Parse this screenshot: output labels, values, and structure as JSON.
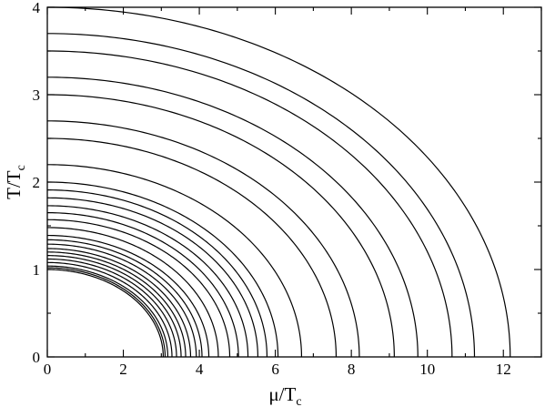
{
  "chart_data": {
    "type": "line",
    "title": "",
    "xlabel": {
      "main": "μ/T",
      "sub": "c"
    },
    "ylabel": {
      "main": "T/T",
      "sub": "c"
    },
    "xlim": [
      0,
      13
    ],
    "ylim": [
      0,
      4
    ],
    "x_ticks": [
      0,
      2,
      4,
      6,
      8,
      10,
      12
    ],
    "y_ticks": [
      0,
      1,
      2,
      3,
      4
    ],
    "grid": false,
    "legend": "none",
    "line_color": "#000000",
    "series": [
      {
        "T0": 1.0,
        "mu_max": 3.05
      },
      {
        "T0": 1.02,
        "mu_max": 3.1
      },
      {
        "T0": 1.04,
        "mu_max": 3.17
      },
      {
        "T0": 1.08,
        "mu_max": 3.28
      },
      {
        "T0": 1.12,
        "mu_max": 3.4
      },
      {
        "T0": 1.16,
        "mu_max": 3.52
      },
      {
        "T0": 1.2,
        "mu_max": 3.64
      },
      {
        "T0": 1.24,
        "mu_max": 3.77
      },
      {
        "T0": 1.29,
        "mu_max": 3.92
      },
      {
        "T0": 1.34,
        "mu_max": 4.07
      },
      {
        "T0": 1.39,
        "mu_max": 4.25
      },
      {
        "T0": 1.48,
        "mu_max": 4.5
      },
      {
        "T0": 1.57,
        "mu_max": 4.8
      },
      {
        "T0": 1.65,
        "mu_max": 5.03
      },
      {
        "T0": 1.73,
        "mu_max": 5.28
      },
      {
        "T0": 1.82,
        "mu_max": 5.54
      },
      {
        "T0": 1.91,
        "mu_max": 5.78
      },
      {
        "T0": 2.0,
        "mu_max": 6.07
      },
      {
        "T0": 2.2,
        "mu_max": 6.69
      },
      {
        "T0": 2.5,
        "mu_max": 7.6
      },
      {
        "T0": 2.7,
        "mu_max": 8.21
      },
      {
        "T0": 3.0,
        "mu_max": 9.13
      },
      {
        "T0": 3.2,
        "mu_max": 9.75
      },
      {
        "T0": 3.5,
        "mu_max": 10.65
      },
      {
        "T0": 3.7,
        "mu_max": 11.24
      },
      {
        "T0": 4.0,
        "mu_max": 12.18
      }
    ]
  }
}
